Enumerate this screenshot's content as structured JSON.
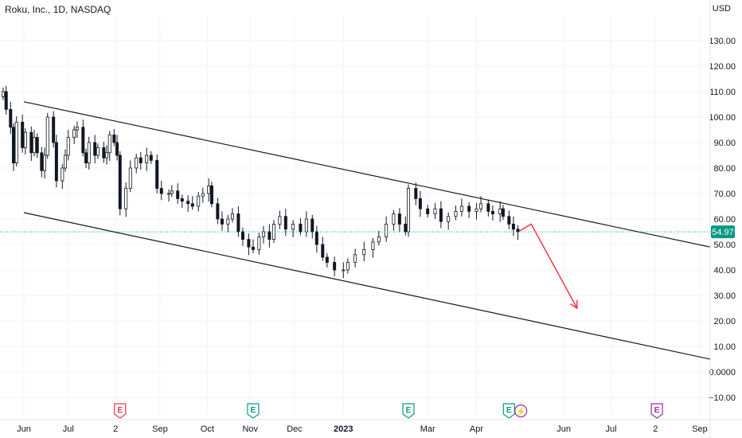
{
  "header": {
    "symbol_title": "Roku, Inc., 1D, NASDAQ",
    "currency": "USD"
  },
  "colors": {
    "up": "#26a69a",
    "down": "#ef5350",
    "candle": "#131722",
    "channel": "#131722",
    "arrow": "#f23645",
    "last_price_bg": "#089981",
    "event_e_earnings_teal": "#089981",
    "event_e_red": "#f23645",
    "event_e_purple": "#9c27b0"
  },
  "chart_data": {
    "type": "candlestick",
    "title": "Roku, Inc., 1D, NASDAQ",
    "y_axis": {
      "unit": "USD",
      "range": [
        -14,
        146
      ],
      "ticks": [
        130,
        120,
        110,
        100,
        90,
        80,
        70,
        60,
        50,
        40,
        30,
        20,
        10,
        0,
        -10
      ],
      "tick_labels": [
        "130.00",
        "120.00",
        "110.00",
        "100.00",
        "90.00",
        "80.00",
        "70.00",
        "60.00",
        "50.00",
        "40.00",
        "30.00",
        "20.00",
        "10.00",
        "0.0000",
        "−10.00"
      ]
    },
    "x_axis": {
      "range": [
        "2022-05-18",
        "2023-09-08"
      ],
      "ticks": [
        {
          "date": "2022-06-01",
          "label": "Jun"
        },
        {
          "date": "2022-07-01",
          "label": "Jul"
        },
        {
          "date": "2022-08-02",
          "label": "2"
        },
        {
          "date": "2022-09-01",
          "label": "Sep"
        },
        {
          "date": "2022-10-03",
          "label": "Oct"
        },
        {
          "date": "2022-11-01",
          "label": "Nov"
        },
        {
          "date": "2022-12-01",
          "label": "Dec"
        },
        {
          "date": "2023-01-03",
          "label": "2023",
          "bold": true
        },
        {
          "date": "2023-03-01",
          "label": "Mar"
        },
        {
          "date": "2023-04-03",
          "label": "Apr"
        },
        {
          "date": "2023-06-01",
          "label": "Jun"
        },
        {
          "date": "2023-07-03",
          "label": "Jul"
        },
        {
          "date": "2023-08-02",
          "label": "2"
        },
        {
          "date": "2023-09-01",
          "label": "Sep"
        }
      ]
    },
    "price_series": {
      "note": "daily closing prices (approximate, read from chart); drawn as candles",
      "points": [
        [
          "2022-05-18",
          110
        ],
        [
          "2022-05-20",
          103
        ],
        [
          "2022-05-23",
          96
        ],
        [
          "2022-05-25",
          82
        ],
        [
          "2022-05-27",
          98
        ],
        [
          "2022-05-31",
          88
        ],
        [
          "2022-06-02",
          94
        ],
        [
          "2022-06-06",
          86
        ],
        [
          "2022-06-08",
          92
        ],
        [
          "2022-06-10",
          86
        ],
        [
          "2022-06-13",
          79
        ],
        [
          "2022-06-15",
          85
        ],
        [
          "2022-06-17",
          100
        ],
        [
          "2022-06-21",
          90
        ],
        [
          "2022-06-23",
          75
        ],
        [
          "2022-06-27",
          80
        ],
        [
          "2022-06-29",
          85
        ],
        [
          "2022-07-01",
          92
        ],
        [
          "2022-07-05",
          95
        ],
        [
          "2022-07-07",
          96
        ],
        [
          "2022-07-11",
          86
        ],
        [
          "2022-07-13",
          82
        ],
        [
          "2022-07-15",
          90
        ],
        [
          "2022-07-19",
          85
        ],
        [
          "2022-07-21",
          88
        ],
        [
          "2022-07-25",
          84
        ],
        [
          "2022-07-27",
          86
        ],
        [
          "2022-07-29",
          93
        ],
        [
          "2022-08-01",
          90
        ],
        [
          "2022-08-03",
          85
        ],
        [
          "2022-08-05",
          64
        ],
        [
          "2022-08-09",
          72
        ],
        [
          "2022-08-12",
          80
        ],
        [
          "2022-08-16",
          84
        ],
        [
          "2022-08-19",
          82
        ],
        [
          "2022-08-23",
          85
        ],
        [
          "2022-08-26",
          83
        ],
        [
          "2022-08-30",
          72
        ],
        [
          "2022-09-02",
          70
        ],
        [
          "2022-09-07",
          70
        ],
        [
          "2022-09-09",
          71
        ],
        [
          "2022-09-13",
          68
        ],
        [
          "2022-09-16",
          67
        ],
        [
          "2022-09-20",
          66
        ],
        [
          "2022-09-23",
          65
        ],
        [
          "2022-09-27",
          69
        ],
        [
          "2022-09-30",
          70
        ],
        [
          "2022-10-04",
          73
        ],
        [
          "2022-10-06",
          66
        ],
        [
          "2022-10-10",
          60
        ],
        [
          "2022-10-13",
          58
        ],
        [
          "2022-10-17",
          60
        ],
        [
          "2022-10-20",
          62
        ],
        [
          "2022-10-24",
          55
        ],
        [
          "2022-10-27",
          52
        ],
        [
          "2022-10-31",
          49
        ],
        [
          "2022-11-03",
          48
        ],
        [
          "2022-11-07",
          53
        ],
        [
          "2022-11-10",
          55
        ],
        [
          "2022-11-14",
          52
        ],
        [
          "2022-11-17",
          58
        ],
        [
          "2022-11-21",
          61
        ],
        [
          "2022-11-25",
          56
        ],
        [
          "2022-11-30",
          58
        ],
        [
          "2022-12-05",
          55
        ],
        [
          "2022-12-09",
          60
        ],
        [
          "2022-12-13",
          55
        ],
        [
          "2022-12-16",
          50
        ],
        [
          "2022-12-20",
          45
        ],
        [
          "2022-12-23",
          43
        ],
        [
          "2022-12-28",
          40
        ],
        [
          "2023-01-03",
          40
        ],
        [
          "2023-01-06",
          43
        ],
        [
          "2023-01-11",
          46
        ],
        [
          "2023-01-17",
          48
        ],
        [
          "2023-01-23",
          51
        ],
        [
          "2023-01-27",
          53
        ],
        [
          "2023-02-01",
          58
        ],
        [
          "2023-02-06",
          62
        ],
        [
          "2023-02-10",
          58
        ],
        [
          "2023-02-14",
          55
        ],
        [
          "2023-02-16",
          72
        ],
        [
          "2023-02-21",
          68
        ],
        [
          "2023-02-24",
          64
        ],
        [
          "2023-03-01",
          62
        ],
        [
          "2023-03-06",
          64
        ],
        [
          "2023-03-10",
          59
        ],
        [
          "2023-03-15",
          61
        ],
        [
          "2023-03-20",
          63
        ],
        [
          "2023-03-24",
          65
        ],
        [
          "2023-03-29",
          63
        ],
        [
          "2023-04-03",
          64
        ],
        [
          "2023-04-06",
          66
        ],
        [
          "2023-04-11",
          63
        ],
        [
          "2023-04-14",
          62
        ],
        [
          "2023-04-19",
          64
        ],
        [
          "2023-04-21",
          61
        ],
        [
          "2023-04-25",
          58
        ],
        [
          "2023-04-28",
          56
        ],
        [
          "2023-05-01",
          55
        ]
      ]
    },
    "last_price": {
      "value": 54.97,
      "label": "54.97"
    },
    "channel_lines": [
      {
        "name": "upper",
        "from": [
          "2022-06-01",
          106
        ],
        "to": [
          "2023-09-08",
          49
        ]
      },
      {
        "name": "lower",
        "from": [
          "2022-06-01",
          62.5
        ],
        "to": [
          "2023-09-08",
          5
        ]
      }
    ],
    "projection_arrow": {
      "points": [
        [
          "2023-05-02",
          55.3
        ],
        [
          "2023-05-10",
          58
        ],
        [
          "2023-06-10",
          25
        ]
      ]
    },
    "events": [
      {
        "date": "2022-08-05",
        "symbol": "E",
        "kind": "earnings",
        "style": "red"
      },
      {
        "date": "2022-11-03",
        "symbol": "E",
        "kind": "earnings",
        "style": "teal"
      },
      {
        "date": "2023-02-16",
        "symbol": "E",
        "kind": "earnings",
        "style": "teal"
      },
      {
        "date": "2023-04-25",
        "symbol": "E",
        "kind": "earnings",
        "style": "teal"
      },
      {
        "date": "2023-05-03",
        "symbol": "⚡",
        "kind": "news",
        "style": "purple"
      },
      {
        "date": "2023-08-03",
        "symbol": "E",
        "kind": "earnings",
        "style": "purple"
      }
    ]
  }
}
